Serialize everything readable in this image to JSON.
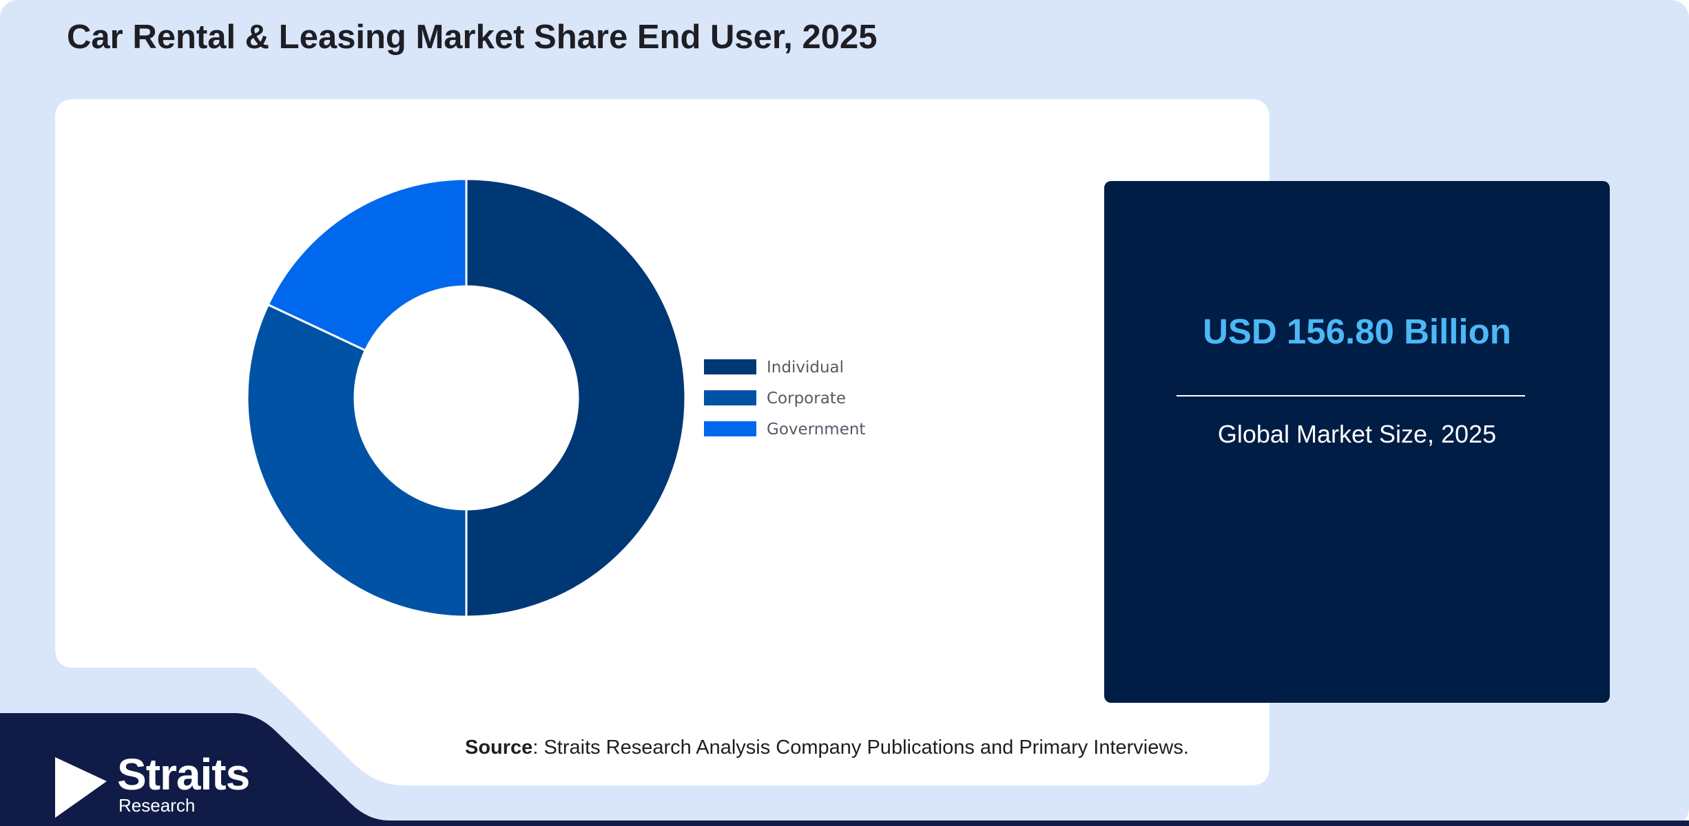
{
  "title": "Car Rental & Leasing Market Share End User, 2025",
  "colors": {
    "frame_bg": "#d9e6fa",
    "card_bg": "#ffffff",
    "navy_panel": "#001d45",
    "logo_band": "#101c47",
    "kpi_value": "#4cb8f5"
  },
  "chart_data": {
    "type": "pie",
    "style": "donut",
    "categories": [
      "Individual",
      "Corporate",
      "Government"
    ],
    "values": [
      50,
      32,
      18
    ],
    "unit": "%",
    "colors": [
      "#003876",
      "#0052a5",
      "#0068ec"
    ],
    "legend_position": "right"
  },
  "kpi": {
    "value": "USD 156.80 Billion",
    "label": "Global Market Size, 2025"
  },
  "source": {
    "label": "Source",
    "text": ": Straits Research Analysis Company Publications and Primary Interviews."
  },
  "logo": {
    "name": "Straits",
    "sub": "Research",
    "icon": "straits-arrow-logo-icon"
  }
}
